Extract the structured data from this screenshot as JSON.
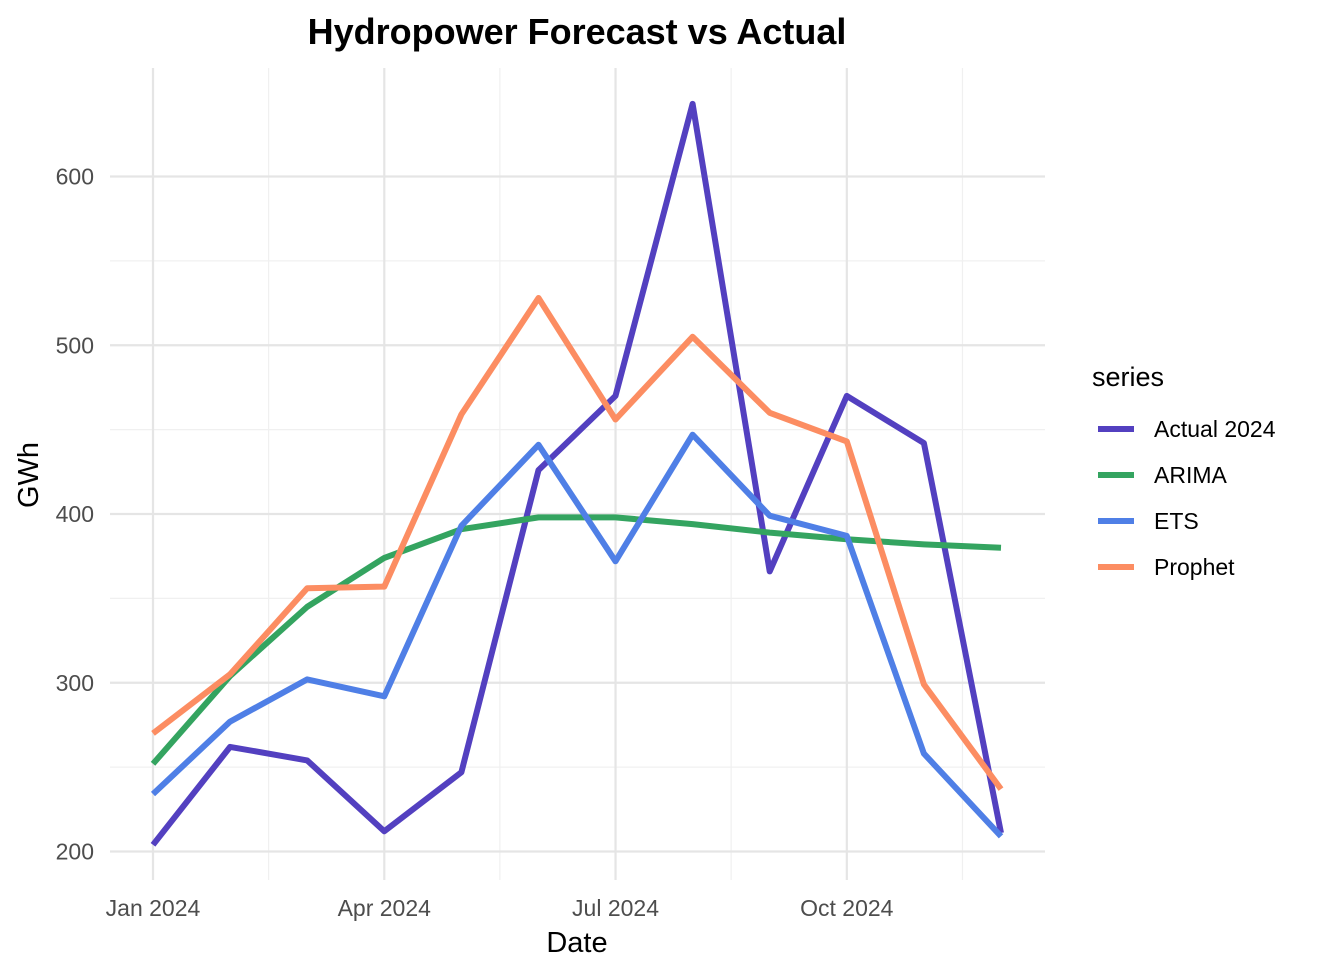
{
  "chart_data": {
    "type": "line",
    "title": "Hydropower Forecast vs Actual",
    "xlabel": "Date",
    "ylabel": "GWh",
    "x": [
      "2024-01",
      "2024-02",
      "2024-03",
      "2024-04",
      "2024-05",
      "2024-06",
      "2024-07",
      "2024-08",
      "2024-09",
      "2024-10",
      "2024-11",
      "2024-12"
    ],
    "x_ticks": [
      "Jan 2024",
      "Apr 2024",
      "Jul 2024",
      "Oct 2024"
    ],
    "y_ticks": [
      200,
      300,
      400,
      500,
      600
    ],
    "ylim": [
      188,
      668
    ],
    "legend_title": "series",
    "legend_position": "right",
    "grid": true,
    "series": [
      {
        "name": "Actual 2024",
        "color": "#5340c0",
        "values": [
          204,
          262,
          254,
          212,
          247,
          426,
          470,
          643,
          366,
          470,
          442,
          211
        ]
      },
      {
        "name": "ARIMA",
        "color": "#34a460",
        "values": [
          252,
          304,
          345,
          374,
          391,
          398,
          398,
          394,
          389,
          385,
          382,
          380
        ]
      },
      {
        "name": "ETS",
        "color": "#4f7fe6",
        "values": [
          234,
          277,
          302,
          292,
          393,
          441,
          372,
          447,
          399,
          387,
          258,
          209
        ]
      },
      {
        "name": "Prophet",
        "color": "#fc8d62",
        "values": [
          270,
          305,
          356,
          357,
          459,
          528,
          456,
          505,
          460,
          443,
          299,
          237
        ]
      }
    ]
  }
}
